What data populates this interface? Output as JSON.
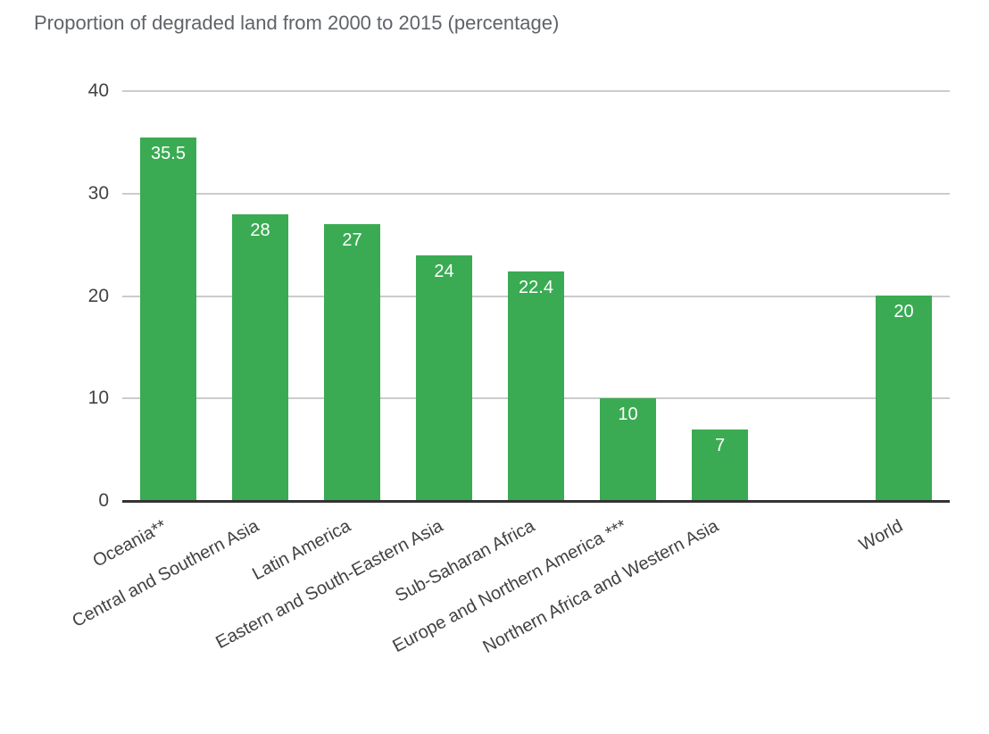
{
  "chart_data": {
    "type": "bar",
    "title": "Proportion of degraded land from 2000 to 2015 (percentage)",
    "categories": [
      "Oceania**",
      "Central and Southern Asia",
      "Latin America",
      "Eastern and South-Eastern Asia",
      "Sub-Saharan Africa",
      "Europe and Northern America ***",
      "Northern Africa and Western Asia",
      "World"
    ],
    "values": [
      35.5,
      28,
      27,
      24,
      22.4,
      10,
      7,
      20
    ],
    "data_labels": [
      "35.5",
      "28",
      "27",
      "24",
      "22.4",
      "10",
      "7",
      "20"
    ],
    "slot_indices": [
      0,
      1,
      2,
      3,
      4,
      5,
      6,
      8
    ],
    "num_slots": 9,
    "xlabel": "",
    "ylabel": "",
    "ylim": [
      0,
      40
    ],
    "yticks": [
      0,
      10,
      20,
      30,
      40
    ],
    "grid": true,
    "legend": "none",
    "colors": {
      "bar": "#3aab53",
      "bar_label": "#ffffff",
      "title": "#5f6368",
      "axis_text": "#424242",
      "gridline": "#cccccc",
      "baseline": "#333333",
      "background": "#ffffff"
    }
  }
}
